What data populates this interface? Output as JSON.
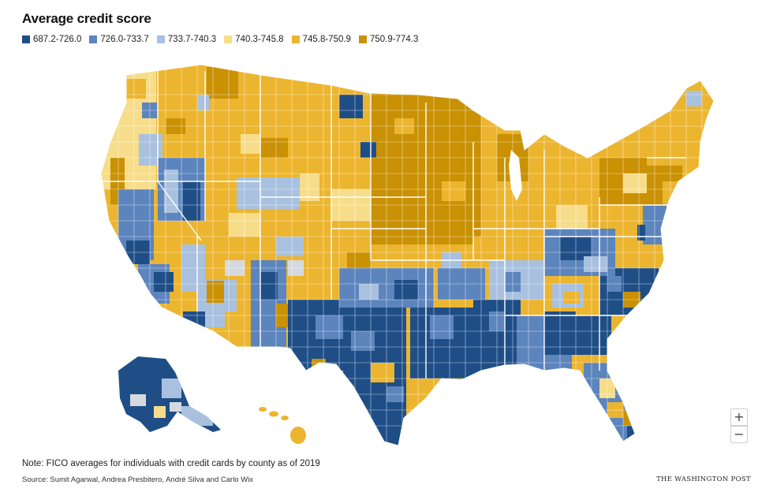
{
  "title": "Average credit score",
  "legend": [
    {
      "label": "687.2-726.0",
      "color": "#1f4e87"
    },
    {
      "label": "726.0-733.7",
      "color": "#5c84bd"
    },
    {
      "label": "733.7-740.3",
      "color": "#a9c1df"
    },
    {
      "label": "740.3-745.8",
      "color": "#f7dd8a"
    },
    {
      "label": "745.8-750.9",
      "color": "#ecb52f"
    },
    {
      "label": "750.9-774.3",
      "color": "#c99103"
    }
  ],
  "zoom": {
    "in_label": "+",
    "out_label": "−"
  },
  "note": "Note: FICO averages for individuals with credit cards by county as of 2019",
  "source": "Source: Sumit Agarwal, Andrea Presbitero, André Silva and Carlo Wix",
  "brand": "THE WASHINGTON POST"
}
